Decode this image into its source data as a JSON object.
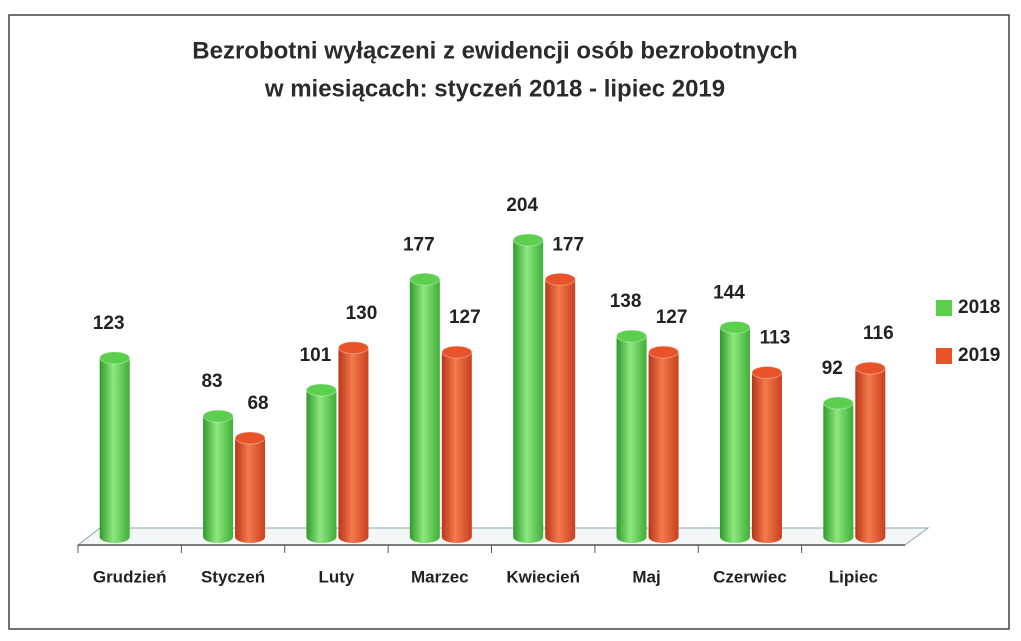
{
  "chart_data": {
    "type": "bar",
    "title": [
      "Bezrobotni wyłączeni z ewidencji osób bezrobotnych",
      "w miesiącach: styczeń 2018 - lipiec 2019"
    ],
    "categories": [
      "Grudzień",
      "Styczeń",
      "Luty",
      "Marzec",
      "Kwiecień",
      "Maj",
      "Czerwiec",
      "Lipiec"
    ],
    "series": [
      {
        "name": "2018",
        "color": "#5ccf4f",
        "values": [
          123,
          83,
          101,
          177,
          204,
          138,
          144,
          92
        ]
      },
      {
        "name": "2019",
        "color": "#e8532a",
        "values": [
          null,
          68,
          130,
          127,
          177,
          127,
          113,
          116
        ]
      }
    ],
    "legend": "right"
  }
}
